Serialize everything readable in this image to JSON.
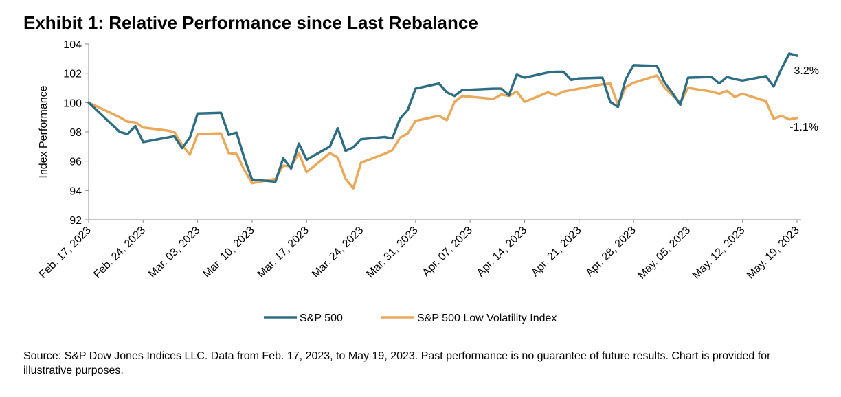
{
  "chart_data": {
    "type": "line",
    "title": "Exhibit 1: Relative Performance since Last Rebalance",
    "ylabel": "Index Performance",
    "xlabel": "",
    "ylim": [
      92,
      104
    ],
    "yticks": [
      92,
      94,
      96,
      98,
      100,
      102,
      104
    ],
    "xrange": [
      "2023-02-17",
      "2023-05-19"
    ],
    "xticks": [
      {
        "date": "2023-02-17",
        "label": "Feb. 17, 2023"
      },
      {
        "date": "2023-02-24",
        "label": "Feb. 24, 2023"
      },
      {
        "date": "2023-03-03",
        "label": "Mar. 03, 2023"
      },
      {
        "date": "2023-03-10",
        "label": "Mar. 10, 2023"
      },
      {
        "date": "2023-03-17",
        "label": "Mar. 17, 2023"
      },
      {
        "date": "2023-03-24",
        "label": "Mar. 24, 2023"
      },
      {
        "date": "2023-03-31",
        "label": "Mar. 31, 2023"
      },
      {
        "date": "2023-04-07",
        "label": "Apr. 07, 2023"
      },
      {
        "date": "2023-04-14",
        "label": "Apr. 14, 2023"
      },
      {
        "date": "2023-04-21",
        "label": "Apr. 21, 2023"
      },
      {
        "date": "2023-04-28",
        "label": "Apr. 28, 2023"
      },
      {
        "date": "2023-05-05",
        "label": "May. 05, 2023"
      },
      {
        "date": "2023-05-12",
        "label": "May. 12, 2023"
      },
      {
        "date": "2023-05-19",
        "label": "May. 19, 2023"
      }
    ],
    "grid": false,
    "legend_position": "bottom",
    "series": [
      {
        "name": "S&P 500",
        "color": "#2e6e85",
        "end_label": "3.2%",
        "points": [
          [
            "2023-02-17",
            100.0
          ],
          [
            "2023-02-21",
            98.0
          ],
          [
            "2023-02-22",
            97.85
          ],
          [
            "2023-02-23",
            98.4
          ],
          [
            "2023-02-24",
            97.3
          ],
          [
            "2023-02-27",
            97.6
          ],
          [
            "2023-02-28",
            97.7
          ],
          [
            "2023-03-01",
            96.9
          ],
          [
            "2023-03-02",
            97.6
          ],
          [
            "2023-03-03",
            99.25
          ],
          [
            "2023-03-06",
            99.3
          ],
          [
            "2023-03-07",
            97.8
          ],
          [
            "2023-03-08",
            97.95
          ],
          [
            "2023-03-09",
            96.2
          ],
          [
            "2023-03-10",
            94.75
          ],
          [
            "2023-03-13",
            94.6
          ],
          [
            "2023-03-14",
            96.2
          ],
          [
            "2023-03-15",
            95.5
          ],
          [
            "2023-03-16",
            97.2
          ],
          [
            "2023-03-17",
            96.1
          ],
          [
            "2023-03-20",
            97.0
          ],
          [
            "2023-03-21",
            98.25
          ],
          [
            "2023-03-22",
            96.7
          ],
          [
            "2023-03-23",
            96.95
          ],
          [
            "2023-03-24",
            97.5
          ],
          [
            "2023-03-27",
            97.65
          ],
          [
            "2023-03-28",
            97.55
          ],
          [
            "2023-03-29",
            98.9
          ],
          [
            "2023-03-30",
            99.5
          ],
          [
            "2023-03-31",
            100.95
          ],
          [
            "2023-04-03",
            101.3
          ],
          [
            "2023-04-04",
            100.7
          ],
          [
            "2023-04-05",
            100.45
          ],
          [
            "2023-04-06",
            100.85
          ],
          [
            "2023-04-10",
            100.95
          ],
          [
            "2023-04-11",
            100.95
          ],
          [
            "2023-04-12",
            100.5
          ],
          [
            "2023-04-13",
            101.9
          ],
          [
            "2023-04-14",
            101.7
          ],
          [
            "2023-04-17",
            102.05
          ],
          [
            "2023-04-18",
            102.1
          ],
          [
            "2023-04-19",
            102.1
          ],
          [
            "2023-04-20",
            101.55
          ],
          [
            "2023-04-21",
            101.65
          ],
          [
            "2023-04-24",
            101.7
          ],
          [
            "2023-04-25",
            100.05
          ],
          [
            "2023-04-26",
            99.7
          ],
          [
            "2023-04-27",
            101.6
          ],
          [
            "2023-04-28",
            102.55
          ],
          [
            "2023-05-01",
            102.5
          ],
          [
            "2023-05-02",
            101.35
          ],
          [
            "2023-05-03",
            100.65
          ],
          [
            "2023-05-04",
            99.85
          ],
          [
            "2023-05-05",
            101.7
          ],
          [
            "2023-05-08",
            101.75
          ],
          [
            "2023-05-09",
            101.3
          ],
          [
            "2023-05-10",
            101.75
          ],
          [
            "2023-05-11",
            101.6
          ],
          [
            "2023-05-12",
            101.5
          ],
          [
            "2023-05-15",
            101.8
          ],
          [
            "2023-05-16",
            101.1
          ],
          [
            "2023-05-17",
            102.3
          ],
          [
            "2023-05-18",
            103.35
          ],
          [
            "2023-05-19",
            103.2
          ]
        ]
      },
      {
        "name": "S&P 500 Low Volatility Index",
        "color": "#eaa85a",
        "end_label": "-1.1%",
        "points": [
          [
            "2023-02-17",
            100.0
          ],
          [
            "2023-02-21",
            99.0
          ],
          [
            "2023-02-22",
            98.7
          ],
          [
            "2023-02-23",
            98.65
          ],
          [
            "2023-02-24",
            98.3
          ],
          [
            "2023-02-27",
            98.1
          ],
          [
            "2023-02-28",
            98.0
          ],
          [
            "2023-03-01",
            97.1
          ],
          [
            "2023-03-02",
            96.45
          ],
          [
            "2023-03-03",
            97.85
          ],
          [
            "2023-03-06",
            97.9
          ],
          [
            "2023-03-07",
            96.55
          ],
          [
            "2023-03-08",
            96.5
          ],
          [
            "2023-03-09",
            95.4
          ],
          [
            "2023-03-10",
            94.5
          ],
          [
            "2023-03-13",
            94.8
          ],
          [
            "2023-03-14",
            95.7
          ],
          [
            "2023-03-15",
            95.65
          ],
          [
            "2023-03-16",
            96.55
          ],
          [
            "2023-03-17",
            95.25
          ],
          [
            "2023-03-20",
            96.55
          ],
          [
            "2023-03-21",
            96.25
          ],
          [
            "2023-03-22",
            94.8
          ],
          [
            "2023-03-23",
            94.15
          ],
          [
            "2023-03-24",
            95.9
          ],
          [
            "2023-03-27",
            96.5
          ],
          [
            "2023-03-28",
            96.75
          ],
          [
            "2023-03-29",
            97.6
          ],
          [
            "2023-03-30",
            97.9
          ],
          [
            "2023-03-31",
            98.75
          ],
          [
            "2023-04-03",
            99.1
          ],
          [
            "2023-04-04",
            98.8
          ],
          [
            "2023-04-05",
            100.05
          ],
          [
            "2023-04-06",
            100.45
          ],
          [
            "2023-04-10",
            100.25
          ],
          [
            "2023-04-11",
            100.55
          ],
          [
            "2023-04-12",
            100.45
          ],
          [
            "2023-04-13",
            100.75
          ],
          [
            "2023-04-14",
            100.05
          ],
          [
            "2023-04-17",
            100.7
          ],
          [
            "2023-04-18",
            100.5
          ],
          [
            "2023-04-19",
            100.75
          ],
          [
            "2023-04-20",
            100.85
          ],
          [
            "2023-04-21",
            100.95
          ],
          [
            "2023-04-24",
            101.25
          ],
          [
            "2023-04-25",
            101.3
          ],
          [
            "2023-04-26",
            99.85
          ],
          [
            "2023-04-27",
            101.05
          ],
          [
            "2023-04-28",
            101.35
          ],
          [
            "2023-05-01",
            101.85
          ],
          [
            "2023-05-02",
            101.0
          ],
          [
            "2023-05-03",
            100.5
          ],
          [
            "2023-05-04",
            100.0
          ],
          [
            "2023-05-05",
            101.0
          ],
          [
            "2023-05-08",
            100.75
          ],
          [
            "2023-05-09",
            100.6
          ],
          [
            "2023-05-10",
            100.8
          ],
          [
            "2023-05-11",
            100.4
          ],
          [
            "2023-05-12",
            100.6
          ],
          [
            "2023-05-15",
            100.1
          ],
          [
            "2023-05-16",
            98.9
          ],
          [
            "2023-05-17",
            99.1
          ],
          [
            "2023-05-18",
            98.85
          ],
          [
            "2023-05-19",
            98.95
          ]
        ]
      }
    ]
  },
  "footer": {
    "source": "Source: S&P Dow Jones Indices LLC. Data from Feb. 17, 2023, to May 19, 2023. Past performance is no guarantee of future results. Chart is provided for illustrative purposes."
  }
}
